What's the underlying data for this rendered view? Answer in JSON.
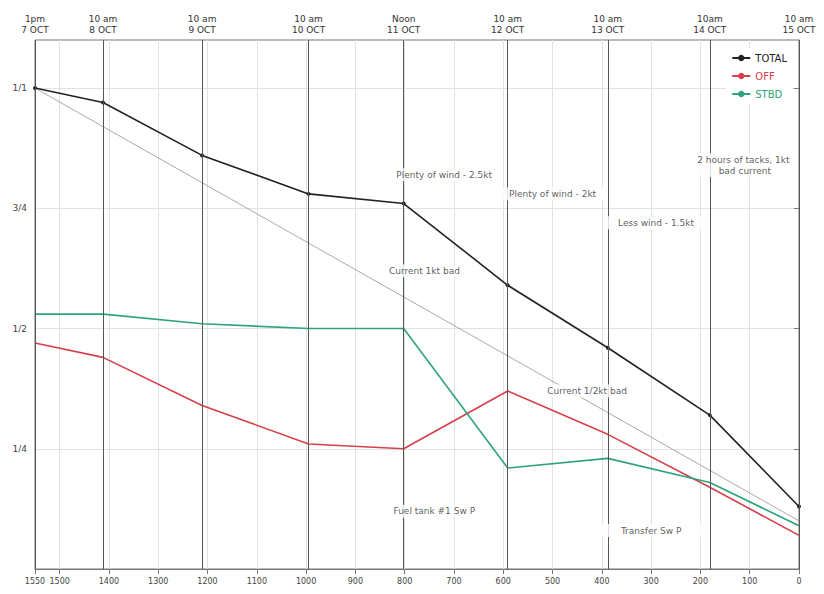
{
  "chart_data": {
    "type": "line",
    "x": [
      1550,
      1412,
      1211,
      995,
      802,
      591,
      388,
      181,
      0
    ],
    "series": [
      {
        "name": "TOTAL",
        "color": "#222222",
        "marker": "circle",
        "line_style": "solid",
        "values": [
          1.0,
          0.97,
          0.86,
          0.78,
          0.76,
          0.59,
          0.46,
          0.32,
          0.13
        ]
      },
      {
        "name": "OFF",
        "color": "#d6404a",
        "marker": "none",
        "line_style": "solid",
        "values": [
          0.47,
          0.44,
          0.34,
          0.26,
          0.25,
          0.37,
          0.28,
          0.17,
          0.07
        ]
      },
      {
        "name": "STBD",
        "color": "#2fa37a",
        "marker": "none",
        "line_style": "solid",
        "values": [
          0.53,
          0.53,
          0.51,
          0.5,
          0.5,
          0.21,
          0.23,
          0.18,
          0.09
        ]
      },
      {
        "color": "#aaaaaa",
        "marker": "none",
        "line_style": "solid",
        "x": [
          1550,
          0
        ],
        "values": [
          1.0,
          0.1
        ]
      }
    ],
    "events": [
      {
        "x": 1550,
        "label": "1pm 7 OCT"
      },
      {
        "x": 1412,
        "label": "10 am 8 OCT"
      },
      {
        "x": 1211,
        "label": "10 am 9 OCT"
      },
      {
        "x": 995,
        "label": "10 am 10 OCT"
      },
      {
        "x": 802,
        "label": "Noon 11 OCT"
      },
      {
        "x": 591,
        "label": "10 am 12 OCT"
      },
      {
        "x": 388,
        "label": "10 am 13 OCT"
      },
      {
        "x": 181,
        "label": "10am 14 OCT"
      },
      {
        "x": 0,
        "label": "10 am 15 OCT"
      }
    ],
    "annotations": [
      {
        "text": "Plenty of wind - 2.5kt",
        "x": 720,
        "y": 0.82
      },
      {
        "text": "Plenty of wind - 2kt",
        "x": 500,
        "y": 0.78
      },
      {
        "text": "Less wind - 1.5kt",
        "x": 290,
        "y": 0.72
      },
      {
        "text": "2 hours of tacks, 1kt bad current",
        "x": 110,
        "y": 0.84
      },
      {
        "text": "Current 1kt bad",
        "x": 760,
        "y": 0.62
      },
      {
        "text": "Current 1/2kt bad",
        "x": 430,
        "y": 0.37
      },
      {
        "text": "Fuel tank #1 Sw P",
        "x": 740,
        "y": 0.12
      },
      {
        "text": "Transfer Sw P",
        "x": 300,
        "y": 0.08
      }
    ],
    "xlim": [
      1550,
      0
    ],
    "xticks": [
      1550,
      1500,
      1400,
      1300,
      1200,
      1100,
      1000,
      900,
      800,
      700,
      600,
      500,
      400,
      300,
      200,
      100,
      0
    ],
    "ylim": [
      0,
      1.1
    ],
    "yticks": [
      {
        "value": 0.25,
        "label": "1/4"
      },
      {
        "value": 0.5,
        "label": "1/2"
      },
      {
        "value": 0.75,
        "label": "3/4"
      },
      {
        "value": 1,
        "label": "1/1"
      }
    ],
    "grid": true,
    "legend": "upper right"
  }
}
